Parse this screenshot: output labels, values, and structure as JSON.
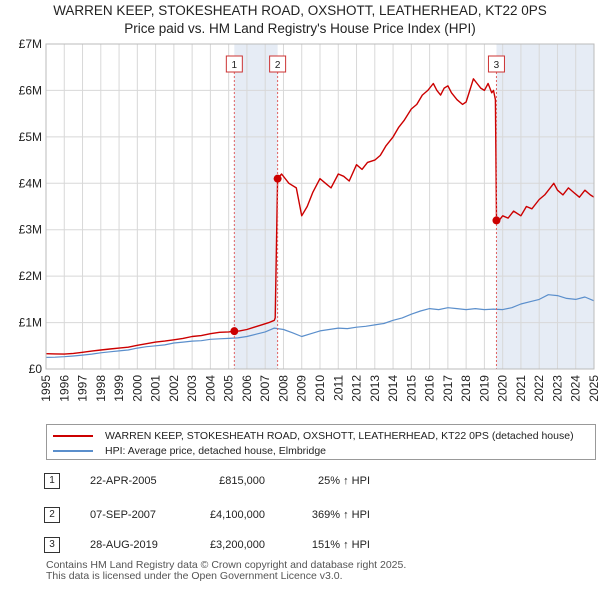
{
  "title": {
    "line1": "WARREN KEEP, STOKESHEATH ROAD, OXSHOTT, LEATHERHEAD, KT22 0PS",
    "line2": "Price paid vs. HM Land Registry's House Price Index (HPI)"
  },
  "colors": {
    "property": "#cc0000",
    "hpi": "#5b8fcc",
    "shade": "#dde6f2",
    "marker_line": "#e06060"
  },
  "chart_data": {
    "type": "line",
    "title": "Price paid vs. HM Land Registry's House Price Index (HPI)",
    "xlabel": "",
    "ylabel": "",
    "xlim": [
      1995,
      2025
    ],
    "ylim": [
      0,
      7000000
    ],
    "y_ticks": [
      0,
      1000000,
      2000000,
      3000000,
      4000000,
      5000000,
      6000000,
      7000000
    ],
    "y_tick_labels": [
      "£0",
      "£1M",
      "£2M",
      "£3M",
      "£4M",
      "£5M",
      "£6M",
      "£7M"
    ],
    "x_ticks": [
      1995,
      1996,
      1997,
      1998,
      1999,
      2000,
      2001,
      2002,
      2003,
      2004,
      2005,
      2006,
      2007,
      2008,
      2009,
      2010,
      2011,
      2012,
      2013,
      2014,
      2015,
      2016,
      2017,
      2018,
      2019,
      2020,
      2021,
      2022,
      2023,
      2024,
      2025
    ],
    "grid": true,
    "series": [
      {
        "name": "WARREN KEEP, STOKESHEATH ROAD, OXSHOTT, LEATHERHEAD, KT22 0PS (detached house)",
        "color": "#cc0000",
        "x": [
          1995.0,
          1995.5,
          1996.0,
          1996.5,
          1997.0,
          1997.5,
          1998.0,
          1998.5,
          1999.0,
          1999.5,
          2000.0,
          2000.5,
          2001.0,
          2001.5,
          2002.0,
          2002.5,
          2003.0,
          2003.5,
          2004.0,
          2004.5,
          2005.0,
          2005.31,
          2005.6,
          2006.0,
          2006.4,
          2006.8,
          2007.2,
          2007.5,
          2007.55,
          2007.68,
          2007.9,
          2008.3,
          2008.7,
          2009.0,
          2009.3,
          2009.6,
          2010.0,
          2010.3,
          2010.6,
          2011.0,
          2011.3,
          2011.6,
          2012.0,
          2012.3,
          2012.6,
          2013.0,
          2013.3,
          2013.6,
          2014.0,
          2014.3,
          2014.6,
          2015.0,
          2015.3,
          2015.6,
          2015.9,
          2016.2,
          2016.4,
          2016.6,
          2016.8,
          2017.0,
          2017.2,
          2017.5,
          2017.8,
          2018.0,
          2018.2,
          2018.4,
          2018.6,
          2018.8,
          2019.0,
          2019.2,
          2019.4,
          2019.5,
          2019.6,
          2019.66,
          2019.7,
          2020.0,
          2020.3,
          2020.6,
          2021.0,
          2021.3,
          2021.6,
          2022.0,
          2022.3,
          2022.6,
          2022.8,
          2023.0,
          2023.3,
          2023.6,
          2023.9,
          2024.2,
          2024.5,
          2024.8,
          2025.0
        ],
        "y": [
          330000,
          325000,
          320000,
          335000,
          360000,
          385000,
          410000,
          430000,
          450000,
          470000,
          510000,
          545000,
          580000,
          600000,
          630000,
          660000,
          700000,
          720000,
          760000,
          790000,
          800000,
          815000,
          820000,
          850000,
          900000,
          950000,
          1000000,
          1050000,
          1100000,
          4100000,
          4200000,
          4000000,
          3900000,
          3300000,
          3500000,
          3800000,
          4100000,
          4000000,
          3900000,
          4200000,
          4150000,
          4050000,
          4400000,
          4300000,
          4450000,
          4500000,
          4600000,
          4800000,
          5000000,
          5200000,
          5350000,
          5600000,
          5700000,
          5900000,
          6000000,
          6150000,
          6000000,
          5900000,
          6050000,
          6100000,
          5950000,
          5800000,
          5700000,
          5750000,
          6000000,
          6250000,
          6150000,
          6050000,
          6000000,
          6150000,
          5950000,
          6000000,
          5800000,
          3200000,
          3150000,
          3300000,
          3250000,
          3400000,
          3300000,
          3500000,
          3450000,
          3650000,
          3750000,
          3900000,
          4000000,
          3850000,
          3750000,
          3900000,
          3800000,
          3700000,
          3850000,
          3750000,
          3700000
        ]
      },
      {
        "name": "HPI: Average price, detached house, Elmbridge",
        "color": "#5b8fcc",
        "x": [
          1995.0,
          1995.5,
          1996.0,
          1996.5,
          1997.0,
          1997.5,
          1998.0,
          1998.5,
          1999.0,
          1999.5,
          2000.0,
          2000.5,
          2001.0,
          2001.5,
          2002.0,
          2002.5,
          2003.0,
          2003.5,
          2004.0,
          2004.5,
          2005.0,
          2005.5,
          2006.0,
          2006.5,
          2007.0,
          2007.5,
          2008.0,
          2008.5,
          2009.0,
          2009.5,
          2010.0,
          2010.5,
          2011.0,
          2011.5,
          2012.0,
          2012.5,
          2013.0,
          2013.5,
          2014.0,
          2014.5,
          2015.0,
          2015.5,
          2016.0,
          2016.5,
          2017.0,
          2017.5,
          2018.0,
          2018.5,
          2019.0,
          2019.5,
          2020.0,
          2020.5,
          2021.0,
          2021.5,
          2022.0,
          2022.5,
          2023.0,
          2023.5,
          2024.0,
          2024.5,
          2025.0
        ],
        "y": [
          250000,
          255000,
          265000,
          280000,
          300000,
          320000,
          350000,
          370000,
          390000,
          410000,
          450000,
          480000,
          500000,
          520000,
          560000,
          580000,
          600000,
          610000,
          640000,
          650000,
          660000,
          670000,
          700000,
          750000,
          800000,
          880000,
          850000,
          780000,
          700000,
          760000,
          820000,
          850000,
          880000,
          870000,
          900000,
          920000,
          950000,
          980000,
          1050000,
          1100000,
          1180000,
          1250000,
          1300000,
          1280000,
          1320000,
          1300000,
          1280000,
          1300000,
          1280000,
          1290000,
          1280000,
          1320000,
          1400000,
          1450000,
          1500000,
          1600000,
          1580000,
          1520000,
          1500000,
          1550000,
          1470000
        ]
      }
    ],
    "sales": [
      {
        "label": "1",
        "x": 2005.31,
        "value": 815000
      },
      {
        "label": "2",
        "x": 2007.68,
        "value": 4100000
      },
      {
        "label": "3",
        "x": 2019.66,
        "value": 3200000
      }
    ],
    "shaded_ranges": [
      [
        2005.31,
        2007.68
      ],
      [
        2019.66,
        2025.0
      ]
    ]
  },
  "legend": {
    "property_label": "WARREN KEEP, STOKESHEATH ROAD, OXSHOTT, LEATHERHEAD, KT22 0PS (detached house)",
    "hpi_label": "HPI: Average price, detached house, Elmbridge"
  },
  "sales_table": [
    {
      "num": "1",
      "date": "22-APR-2005",
      "price": "£815,000",
      "hpi": "25% ↑ HPI"
    },
    {
      "num": "2",
      "date": "07-SEP-2007",
      "price": "£4,100,000",
      "hpi": "369% ↑ HPI"
    },
    {
      "num": "3",
      "date": "28-AUG-2019",
      "price": "£3,200,000",
      "hpi": "151% ↑ HPI"
    }
  ],
  "footer": {
    "line1": "Contains HM Land Registry data © Crown copyright and database right 2025.",
    "line2": "This data is licensed under the Open Government Licence v3.0."
  }
}
